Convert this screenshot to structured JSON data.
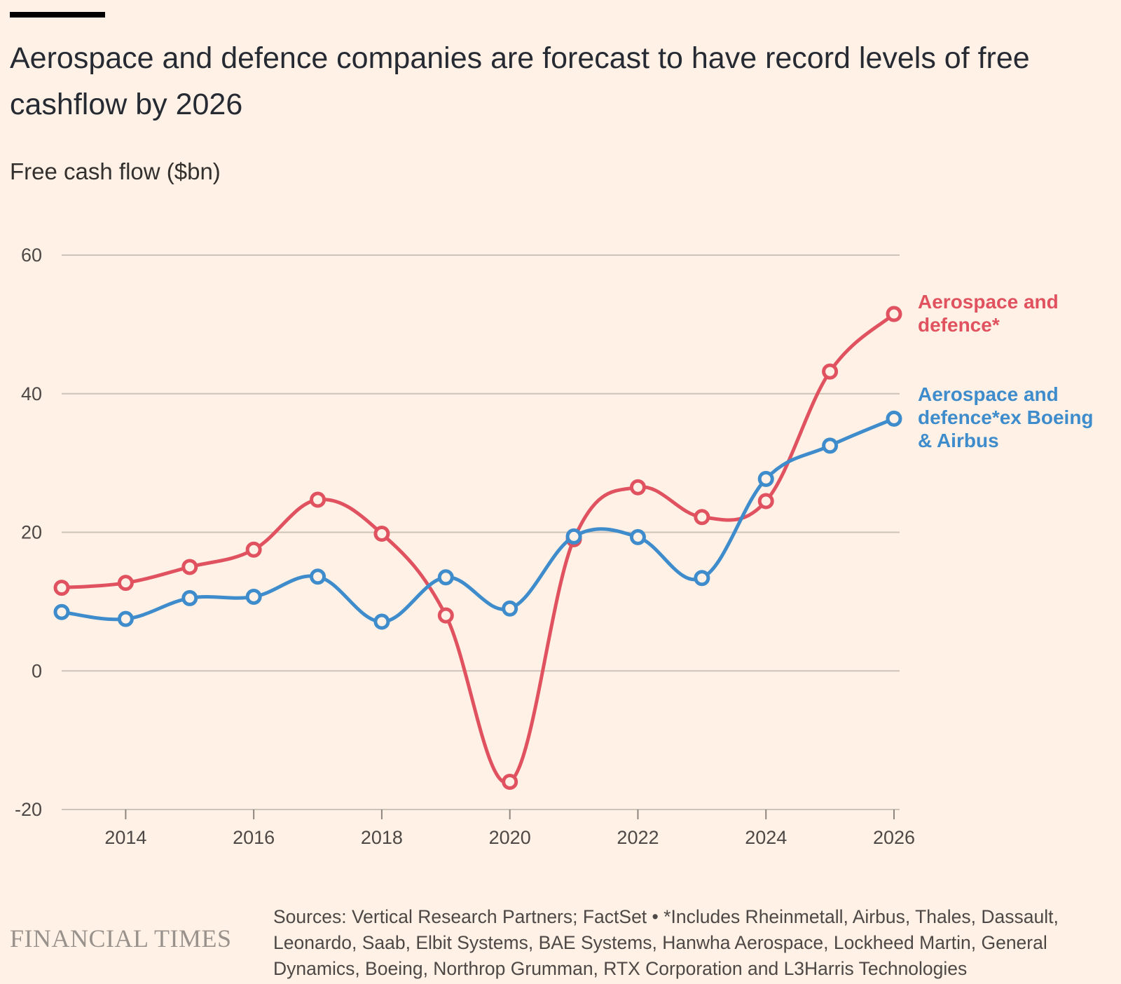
{
  "title": "Aerospace and defence companies are forecast to have record levels of free cashflow by 2026",
  "subtitle": "Free cash flow ($bn)",
  "chart_data": {
    "type": "line",
    "title": "Aerospace and defence companies are forecast to have record levels of free cashflow by 2026",
    "ylabel": "Free cash flow ($bn)",
    "xlabel": "",
    "x": [
      2013,
      2014,
      2015,
      2016,
      2017,
      2018,
      2019,
      2020,
      2021,
      2022,
      2023,
      2024,
      2025,
      2026
    ],
    "xticks": [
      2014,
      2016,
      2018,
      2020,
      2022,
      2024,
      2026
    ],
    "xlim": [
      2013,
      2026
    ],
    "yticks": [
      60,
      40,
      20,
      0,
      -20
    ],
    "ylim": [
      -20,
      60
    ],
    "grid": "horizontal",
    "legend": "direct labels at right",
    "series": [
      {
        "name": "Aerospace and defence*",
        "label_lines": [
          "Aerospace and",
          "defence*"
        ],
        "color": "#e0525f",
        "values": [
          12,
          12.7,
          15,
          17.5,
          24.7,
          19.8,
          8,
          -16,
          19,
          26.5,
          22.2,
          24.5,
          43.2,
          51.5
        ]
      },
      {
        "name": "Aerospace and defence*ex Boeing & Airbus",
        "label_lines": [
          "Aerospace and",
          "defence*ex Boeing",
          "& Airbus"
        ],
        "color": "#3e8ccc",
        "values": [
          8.5,
          7.5,
          10.5,
          10.7,
          13.6,
          7.1,
          13.5,
          9,
          19.4,
          19.3,
          13.4,
          27.7,
          32.5,
          36.4
        ]
      }
    ]
  },
  "footer": {
    "logo": "FINANCIAL TIMES",
    "source": "Sources: Vertical Research Partners; FactSet • *Includes Rheinmetall, Airbus, Thales, Dassault, Leonardo, Saab, Elbit Systems, BAE Systems, Hanwha Aerospace, Lockheed Martin, General Dynamics, Boeing, Northrop Grumman, RTX Corporation and L3Harris Technologies"
  },
  "colors": {
    "background": "#fff1e5",
    "grid": "#cdc4b9",
    "text": "#33302e"
  }
}
